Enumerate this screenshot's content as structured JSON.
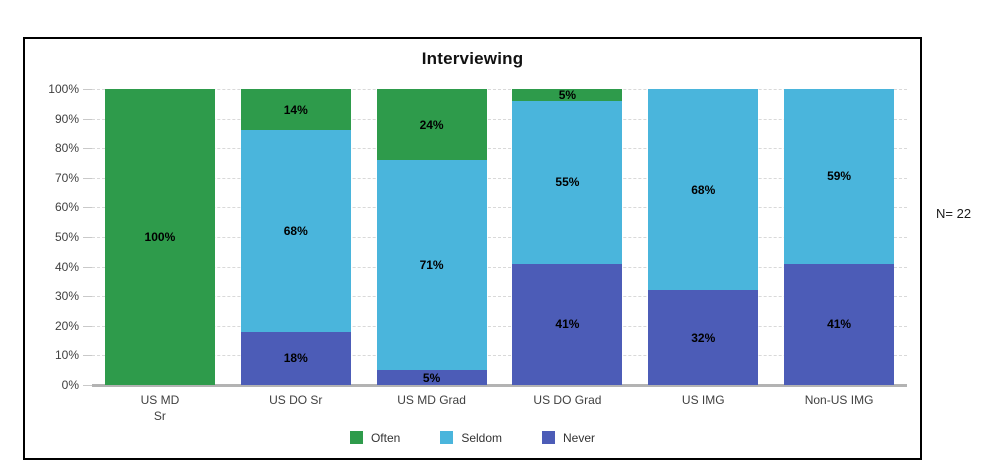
{
  "annotation": {
    "n_label": "N= 22"
  },
  "chart_data": {
    "type": "bar",
    "stacked": true,
    "title": "Interviewing",
    "categories": [
      [
        "US MD",
        "Sr"
      ],
      [
        "US DO Sr"
      ],
      [
        "US MD Grad"
      ],
      [
        "US DO Grad"
      ],
      [
        "US IMG"
      ],
      [
        "Non-US IMG"
      ]
    ],
    "series": [
      {
        "name": "Often",
        "color": "#2e9b4b",
        "values": [
          100,
          14,
          24,
          5,
          0,
          0
        ]
      },
      {
        "name": "Seldom",
        "color": "#4ab5dc",
        "values": [
          0,
          68,
          71,
          55,
          68,
          59
        ]
      },
      {
        "name": "Never",
        "color": "#4c5cb7",
        "values": [
          0,
          18,
          5,
          41,
          32,
          41
        ]
      }
    ],
    "stack_order_bottom_to_top": [
      "Never",
      "Seldom",
      "Often"
    ],
    "y_ticks": [
      "0%",
      "10%",
      "20%",
      "30%",
      "40%",
      "50%",
      "60%",
      "70%",
      "80%",
      "90%",
      "100%"
    ],
    "ylim": [
      0,
      100
    ],
    "bar_labels_suffix": "%",
    "legend_position": "bottom",
    "grid": true,
    "colors": {
      "gridline": "#d9d9d9",
      "axis_line": "#b3b3b3",
      "axis_text": "#404040",
      "bar_label_text": "#000000",
      "border": "#000000"
    }
  }
}
